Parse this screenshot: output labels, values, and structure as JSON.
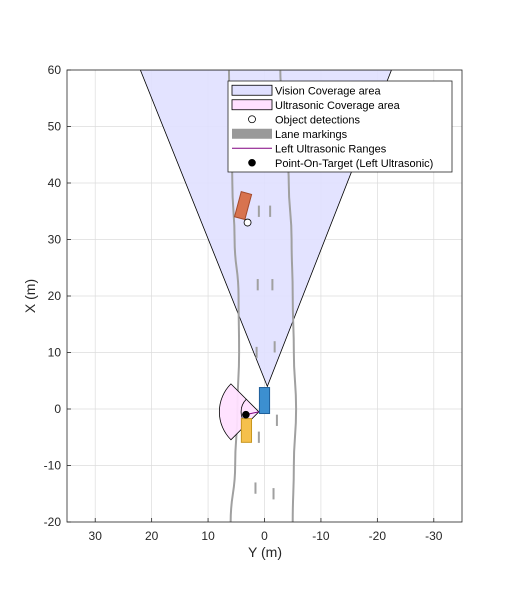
{
  "chart_data": {
    "type": "scatter",
    "title": "",
    "xlabel": "Y (m)",
    "ylabel": "X (m)",
    "xlim": [
      35,
      -35
    ],
    "ylim": [
      -20,
      60
    ],
    "x_reversed": true,
    "grid": true,
    "x_ticks": [
      30,
      20,
      10,
      0,
      -10,
      -20,
      -30
    ],
    "y_ticks": [
      -20,
      -10,
      0,
      10,
      20,
      30,
      40,
      50,
      60
    ],
    "legend_position": "top-right",
    "legend": [
      {
        "label": "Vision Coverage area",
        "kind": "patch",
        "color": "#e0e0ff",
        "edge": "#000000"
      },
      {
        "label": "Ultrasonic Coverage area",
        "kind": "patch",
        "color": "#ffe0ff",
        "edge": "#000000"
      },
      {
        "label": "Object detections",
        "kind": "circle-open",
        "color": "#000000"
      },
      {
        "label": "Lane markings",
        "kind": "thick-line",
        "color": "#999999"
      },
      {
        "label": "Left Ultrasonic Ranges",
        "kind": "line",
        "color": "#800080"
      },
      {
        "label": "Point-On-Target (Left Ultrasonic)",
        "kind": "dot",
        "color": "#000000"
      }
    ],
    "vision_coverage": [
      [
        -0.5,
        4
      ],
      [
        22,
        60
      ],
      [
        -22.5,
        60
      ]
    ],
    "ultrasonic_coverage": {
      "origin": [
        1,
        -0.5
      ],
      "radius": 7,
      "angle_deg": [
        45,
        135
      ]
    },
    "object_detections": [
      [
        3,
        33
      ]
    ],
    "point_on_target": [
      [
        3.3,
        -1
      ]
    ],
    "left_ultrasonic_range": [
      [
        1,
        -0.5
      ],
      [
        3.3,
        -1
      ]
    ],
    "lane_boundaries": [
      [
        [
          6.0,
          -20
        ],
        [
          5.2,
          -10
        ],
        [
          4.8,
          0
        ],
        [
          4.5,
          10
        ],
        [
          4.6,
          20
        ],
        [
          5.3,
          30
        ],
        [
          5.7,
          40
        ],
        [
          6.0,
          50
        ],
        [
          6.3,
          60
        ]
      ],
      [
        [
          -5.0,
          -20
        ],
        [
          -5.2,
          -10
        ],
        [
          -5.6,
          0
        ],
        [
          -5.2,
          10
        ],
        [
          -5.0,
          20
        ],
        [
          -4.8,
          30
        ],
        [
          -4.3,
          40
        ],
        [
          -3.6,
          50
        ],
        [
          -2.8,
          60
        ]
      ]
    ],
    "lane_dashes": [
      [
        [
          1.6,
          -15
        ],
        [
          1.6,
          -13
        ]
      ],
      [
        [
          1.0,
          -6
        ],
        [
          1.0,
          -4
        ]
      ],
      [
        [
          1.4,
          9
        ],
        [
          1.4,
          11
        ]
      ],
      [
        [
          1.2,
          21
        ],
        [
          1.2,
          23
        ]
      ],
      [
        [
          1.0,
          34
        ],
        [
          1.0,
          36
        ]
      ],
      [
        [
          -1.6,
          -16
        ],
        [
          -1.6,
          -14
        ]
      ],
      [
        [
          -2.2,
          -3
        ],
        [
          -2.2,
          -1
        ]
      ],
      [
        [
          -1.8,
          10
        ],
        [
          -1.8,
          12
        ]
      ],
      [
        [
          -1.4,
          21
        ],
        [
          -1.4,
          23
        ]
      ],
      [
        [
          -1.0,
          34
        ],
        [
          -1.0,
          36
        ]
      ]
    ],
    "ego_vehicle": {
      "center": [
        0,
        1.5
      ],
      "length": 4.6,
      "width": 1.8,
      "color": "#3c8fd0",
      "edge": "#1f5f99"
    },
    "other_vehicles": [
      {
        "center": [
          3.2,
          -3.8
        ],
        "length": 4.2,
        "width": 1.8,
        "angle_deg": 0,
        "color": "#f5c04c",
        "edge": "#c8961e"
      },
      {
        "center": [
          3.8,
          36
        ],
        "length": 4.6,
        "width": 1.9,
        "angle_deg": 15,
        "color": "#d8734f",
        "edge": "#a34a2c"
      }
    ]
  }
}
